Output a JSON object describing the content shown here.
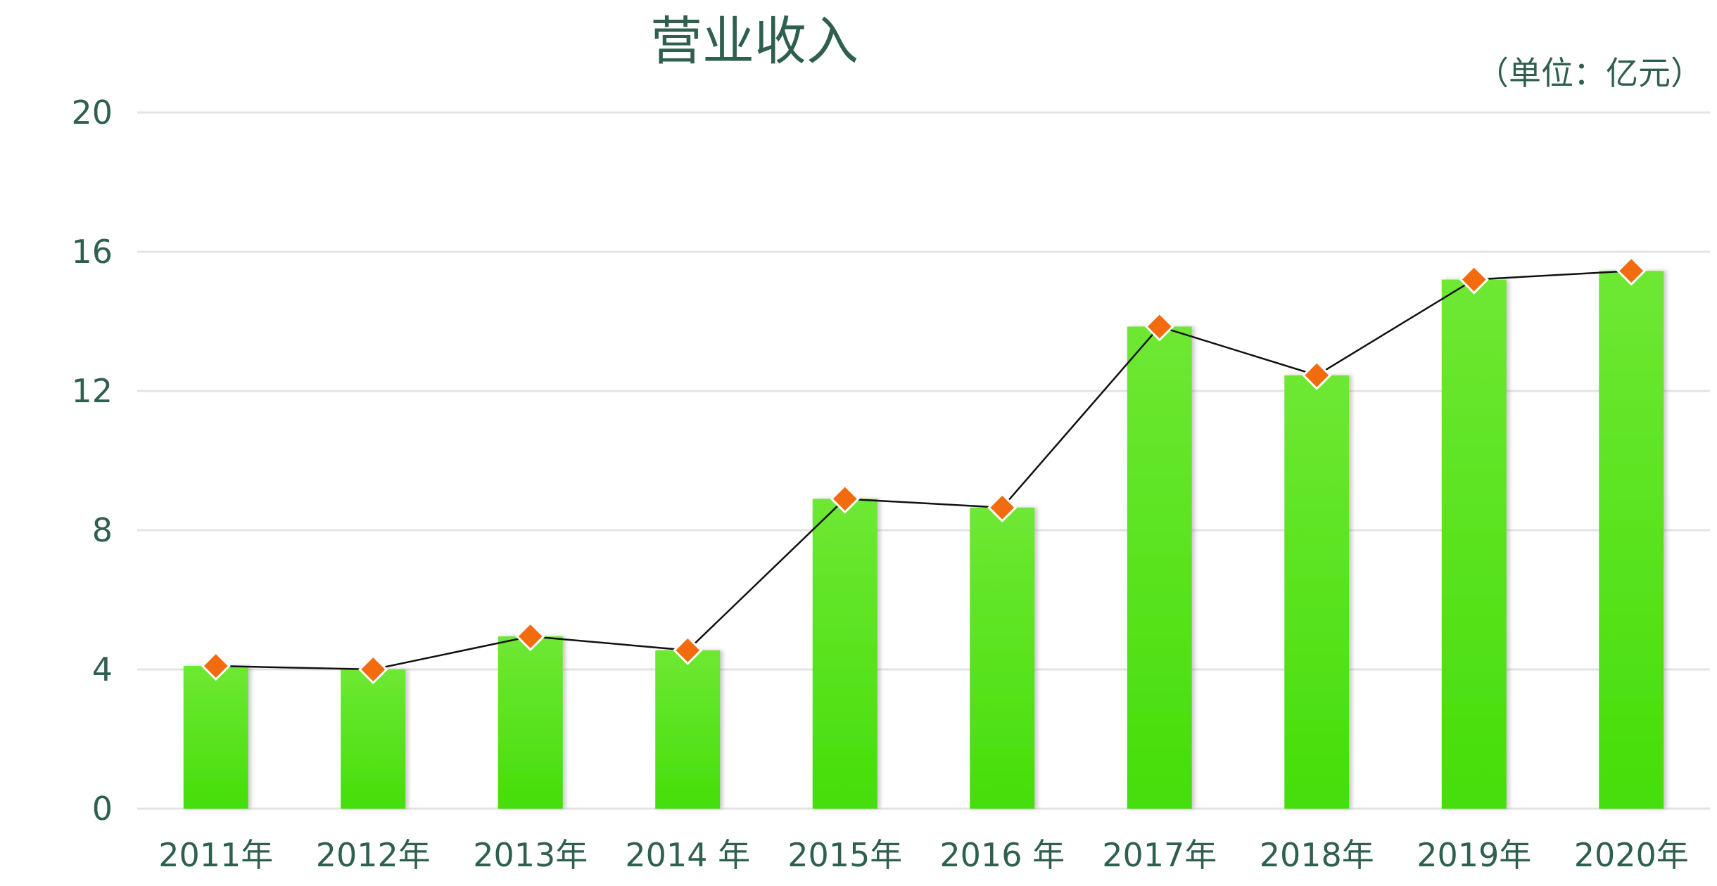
{
  "chart_data": {
    "type": "bar",
    "title": "营业收入",
    "unit_label": "（单位：亿元）",
    "categories": [
      "2011年",
      "2012年",
      "2013年",
      "2014 年",
      "2015年",
      "2016 年",
      "2017年",
      "2018年",
      "2019年",
      "2020年"
    ],
    "series": [
      {
        "values": [
          4.1,
          4.0,
          4.95,
          4.55,
          8.9,
          8.65,
          13.85,
          12.45,
          15.2,
          15.45
        ],
        "bar_color": "#55e41c",
        "line_color": "#111111",
        "marker_color": "#f26b0f"
      }
    ],
    "ylim": [
      0,
      20
    ],
    "yticks": [
      0,
      4,
      8,
      12,
      16,
      20
    ],
    "grid": true,
    "xlabel": "",
    "ylabel": ""
  }
}
